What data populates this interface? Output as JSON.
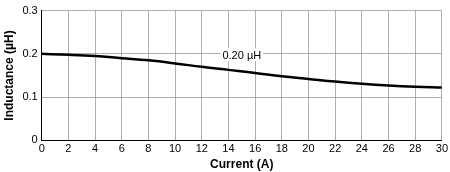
{
  "chart_data": {
    "type": "line",
    "x_label": "Current (A)",
    "y_label": "Inductance (µH)",
    "x": [
      0,
      2,
      4,
      6,
      8,
      10,
      12,
      14,
      16,
      18,
      20,
      22,
      24,
      26,
      28,
      30
    ],
    "values": [
      0.2,
      0.198,
      0.195,
      0.19,
      0.185,
      0.178,
      0.17,
      0.163,
      0.156,
      0.148,
      0.142,
      0.136,
      0.131,
      0.127,
      0.124,
      0.122
    ],
    "color": "#000000",
    "xlim": [
      0,
      30
    ],
    "xticks": [
      0,
      2,
      4,
      6,
      8,
      10,
      12,
      14,
      16,
      18,
      20,
      22,
      24,
      26,
      28,
      30
    ],
    "ylim": [
      0,
      0.3
    ],
    "yticks": [
      0,
      0.1,
      0.2,
      0.3
    ],
    "grid": true,
    "annotations": [
      {
        "text": "0.20 µH",
        "x": 15,
        "y": 0.183
      }
    ]
  }
}
